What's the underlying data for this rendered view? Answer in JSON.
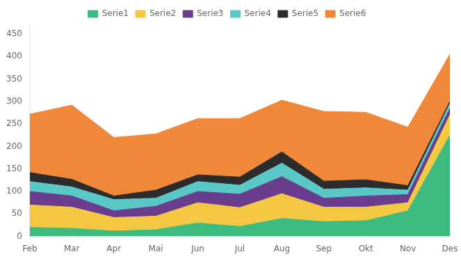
{
  "chart_data": {
    "type": "area",
    "stacked": true,
    "categories": [
      "Feb",
      "Mar",
      "Apr",
      "Mai",
      "Jun",
      "Jul",
      "Aug",
      "Sep",
      "Okt",
      "Nov",
      "Des"
    ],
    "series": [
      {
        "name": "Serie1",
        "color": "#3dba7e",
        "values": [
          20,
          18,
          12,
          15,
          30,
          22,
          40,
          33,
          35,
          57,
          225
        ]
      },
      {
        "name": "Serie2",
        "color": "#f5c842",
        "values": [
          50,
          47,
          30,
          30,
          45,
          42,
          55,
          32,
          30,
          18,
          45
        ]
      },
      {
        "name": "Serie3",
        "color": "#6a3d8f",
        "values": [
          30,
          25,
          15,
          22,
          25,
          30,
          38,
          20,
          25,
          18,
          15
        ]
      },
      {
        "name": "Serie4",
        "color": "#5bc8c8",
        "values": [
          22,
          20,
          25,
          18,
          22,
          20,
          30,
          20,
          18,
          10,
          10
        ]
      },
      {
        "name": "Serie5",
        "color": "#2c2c2c",
        "values": [
          20,
          17,
          8,
          18,
          15,
          18,
          25,
          18,
          18,
          10,
          5
        ]
      },
      {
        "name": "Serie6",
        "color": "#f0883a",
        "values": [
          130,
          165,
          130,
          125,
          125,
          130,
          115,
          155,
          150,
          130,
          105
        ]
      }
    ],
    "ylim": [
      0,
      470
    ],
    "yticks": [
      0,
      50,
      100,
      150,
      200,
      250,
      300,
      350,
      400,
      450
    ],
    "grid": false,
    "legend": "top"
  }
}
